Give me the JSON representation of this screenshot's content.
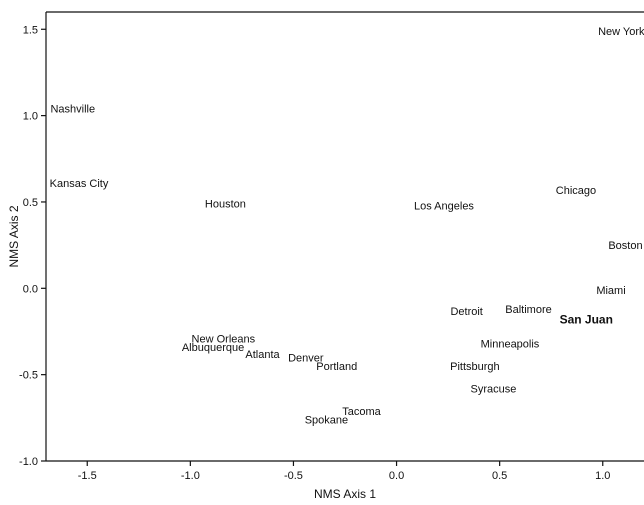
{
  "chart_data": {
    "type": "scatter",
    "title": "",
    "xlabel": "NMS Axis 1",
    "ylabel": "NMS Axis 2",
    "xlim": [
      -1.7,
      1.2
    ],
    "ylim": [
      -1.0,
      1.6
    ],
    "x_ticks": [
      -1.5,
      -1.0,
      -0.5,
      0.0,
      0.5,
      1.0
    ],
    "x_tick_labels": [
      "-1.5",
      "-1.0",
      "-0.5",
      "0.0",
      "0.5",
      "1.0"
    ],
    "y_ticks": [
      -1.0,
      -0.5,
      0.0,
      0.5,
      1.0,
      1.5
    ],
    "y_tick_labels": [
      "-1.0",
      "-0.5",
      "0.0",
      "0.5",
      "1.0",
      "1.5"
    ],
    "grid": false,
    "legend": "none",
    "points": [
      {
        "label": "New York",
        "x": 1.09,
        "y": 1.49,
        "emphasis": false
      },
      {
        "label": "Nashville",
        "x": -1.57,
        "y": 1.04,
        "emphasis": false
      },
      {
        "label": "Kansas City",
        "x": -1.54,
        "y": 0.61,
        "emphasis": false
      },
      {
        "label": "Houston",
        "x": -0.83,
        "y": 0.49,
        "emphasis": false
      },
      {
        "label": "Los Angeles",
        "x": 0.23,
        "y": 0.48,
        "emphasis": false
      },
      {
        "label": "Chicago",
        "x": 0.87,
        "y": 0.57,
        "emphasis": false
      },
      {
        "label": "Boston",
        "x": 1.11,
        "y": 0.25,
        "emphasis": false
      },
      {
        "label": "Miami",
        "x": 1.04,
        "y": -0.01,
        "emphasis": false
      },
      {
        "label": "Baltimore",
        "x": 0.64,
        "y": -0.12,
        "emphasis": false
      },
      {
        "label": "San Juan",
        "x": 0.92,
        "y": -0.18,
        "emphasis": true
      },
      {
        "label": "Detroit",
        "x": 0.34,
        "y": -0.13,
        "emphasis": false
      },
      {
        "label": "Minneapolis",
        "x": 0.55,
        "y": -0.32,
        "emphasis": false
      },
      {
        "label": "Pittsburgh",
        "x": 0.38,
        "y": -0.45,
        "emphasis": false
      },
      {
        "label": "Syracuse",
        "x": 0.47,
        "y": -0.58,
        "emphasis": false
      },
      {
        "label": "New Orleans",
        "x": -0.84,
        "y": -0.29,
        "emphasis": false
      },
      {
        "label": "Albuquerque",
        "x": -0.89,
        "y": -0.34,
        "emphasis": false
      },
      {
        "label": "Atlanta",
        "x": -0.65,
        "y": -0.38,
        "emphasis": false
      },
      {
        "label": "Denver",
        "x": -0.44,
        "y": -0.4,
        "emphasis": false
      },
      {
        "label": "Portland",
        "x": -0.29,
        "y": -0.45,
        "emphasis": false
      },
      {
        "label": "Tacoma",
        "x": -0.17,
        "y": -0.71,
        "emphasis": false
      },
      {
        "label": "Spokane",
        "x": -0.34,
        "y": -0.76,
        "emphasis": false
      }
    ]
  }
}
